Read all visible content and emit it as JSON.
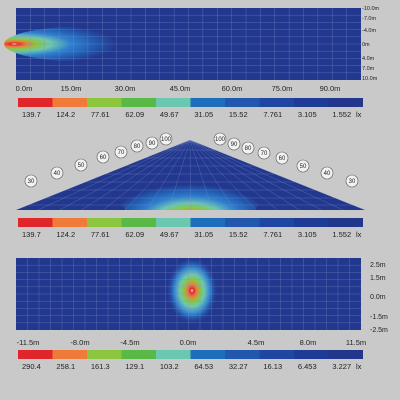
{
  "panel1": {
    "y_ticks": [
      "-10.0m",
      "-7.0m",
      "-4.0m",
      "0m",
      "4.0m",
      "7.0m",
      "10.0m"
    ],
    "x_ticks": [
      "0.0m",
      "15.0m",
      "30.0m",
      "45.0m",
      "60.0m",
      "75.0m",
      "90.0m"
    ]
  },
  "legend1": {
    "values": [
      "139.7",
      "124.2",
      "77.61",
      "62.09",
      "49.67",
      "31.05",
      "15.52",
      "7.761",
      "3.105",
      "1.552"
    ],
    "unit": "lx"
  },
  "panel2": {
    "angles_left": [
      "30",
      "40",
      "50",
      "60",
      "70",
      "80",
      "90",
      "100"
    ],
    "angles_right": [
      "100",
      "90",
      "80",
      "70",
      "60",
      "50",
      "40",
      "30"
    ]
  },
  "legend2": {
    "values": [
      "139.7",
      "124.2",
      "77.61",
      "62.09",
      "49.67",
      "31.05",
      "15.52",
      "7.761",
      "3.105",
      "1.552"
    ],
    "unit": "lx"
  },
  "panel3": {
    "y_ticks": [
      "2.5m",
      "1.5m",
      "0.0m",
      "-1.5m",
      "-2.5m"
    ],
    "x_ticks": [
      "-11.5m",
      "-8.0m",
      "-4.5m",
      "0.0m",
      "4.5m",
      "8.0m",
      "11.5m"
    ]
  },
  "legend3": {
    "values": [
      "290.4",
      "258.1",
      "161.3",
      "129.1",
      "103.2",
      "64.53",
      "32.27",
      "16.13",
      "6.453",
      "3.227"
    ],
    "unit": "lx"
  },
  "colors": {
    "scale": [
      "#e0262b",
      "#f07a3a",
      "#8cc63f",
      "#58b947",
      "#6cc7b1",
      "#1d6fbc",
      "#2158ad",
      "#1f46a1",
      "#1e3b96",
      "#22368c"
    ],
    "background_field": "#22378e",
    "grid": "#7f8fc6"
  }
}
